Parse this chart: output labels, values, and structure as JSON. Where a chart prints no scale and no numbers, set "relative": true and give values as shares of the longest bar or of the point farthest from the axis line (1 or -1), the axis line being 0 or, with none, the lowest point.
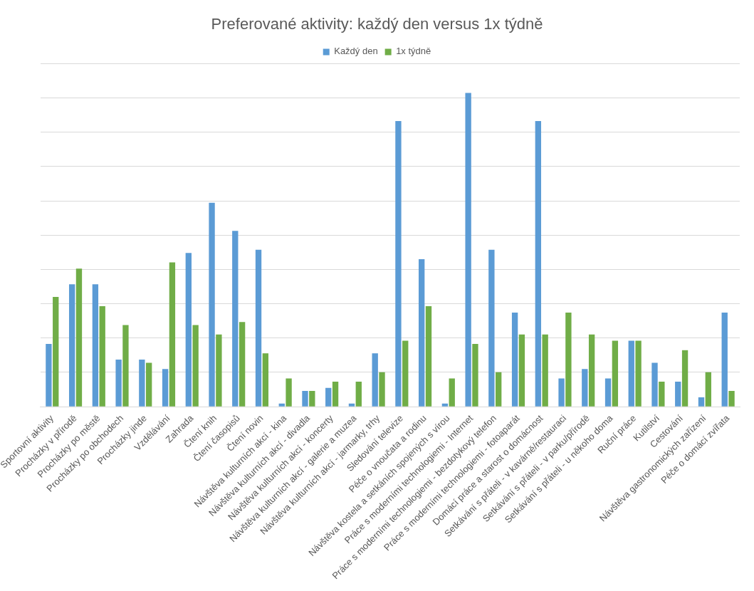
{
  "chart_data": {
    "type": "bar",
    "title": "Preferované aktivity: každý den versus 1x týdně",
    "relative": true,
    "grid": "y",
    "legend": "top",
    "categories": [
      "Sportovní aktivity",
      "Procházky v přírodě",
      "Procházky po městě",
      "Procházky po obchodech",
      "Procházky jinde",
      "Vzdělávání",
      "Zahrada",
      "Čtení knih",
      "Čtení časopisů",
      "Čtení novin",
      "Návštěva kulturních akcí - kina",
      "Návštěva kulturních akcí - divadla",
      "Návštěva kulturních akcí - koncerty",
      "Návštěva kulturních akcí - galerie a muzea",
      "Návštěva kulturních akcí - jarmarky, trhy",
      "Sledování televize",
      "Péče o vnoučata a rodinu",
      "Návštěva kostela a setkáních spojených s vírou",
      "Práce s moderními technologiemi - Internet",
      "Práce s moderními technologiemi - bezdotykový telefon",
      "Práce s moderními technologiemi - fotoaparát",
      "Domácí práce a starost o domácnost",
      "Setkávání s přáteli - v kavárně/restauraci",
      "Setkávání s přáteli - v parku/přírodě",
      "Setkávání s přáteli - u někoho doma",
      "Ruční práce",
      "Kutilství",
      "Cestování",
      "Návštěva gastronomických zařízení",
      "Péče o domácí zvířata"
    ],
    "series": [
      {
        "name": "Každý den",
        "color": "#5b9bd5",
        "values": [
          0.2,
          0.39,
          0.39,
          0.15,
          0.15,
          0.12,
          0.49,
          0.65,
          0.56,
          0.5,
          0.01,
          0.05,
          0.06,
          0.01,
          0.17,
          0.91,
          0.47,
          0.01,
          1,
          0.5,
          0.3,
          0.91,
          0.09,
          0.12,
          0.09,
          0.21,
          0.14,
          0.08,
          0.03,
          0.3
        ]
      },
      {
        "name": "1x týdně",
        "color": "#70ad47",
        "values": [
          0.35,
          0.44,
          0.32,
          0.26,
          0.14,
          0.46,
          0.26,
          0.23,
          0.27,
          0.17,
          0.09,
          0.05,
          0.08,
          0.08,
          0.11,
          0.21,
          0.32,
          0.09,
          0.2,
          0.11,
          0.23,
          0.23,
          0.3,
          0.23,
          0.21,
          0.21,
          0.08,
          0.18,
          0.11,
          0.05
        ]
      }
    ]
  }
}
